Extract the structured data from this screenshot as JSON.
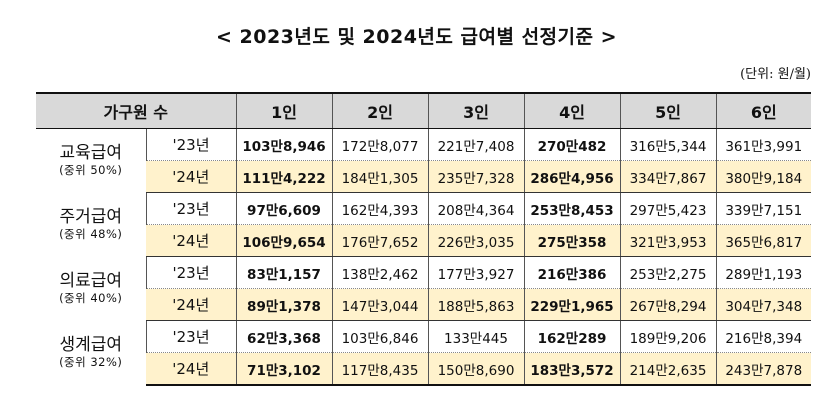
{
  "title": "< 2023년도 및 2024년도 급여별 선정기준 >",
  "unit": "(단위: 원/월)",
  "header": [
    "가구원 수",
    "1인",
    "2인",
    "3인",
    "4인",
    "5인",
    "6인"
  ],
  "rows": [
    {
      "category": "교육급여",
      "sub": "(중위 50%)",
      "y23": {
        "year": "'23년",
        "values": [
          "103만8,946",
          "172만8,077",
          "221만7,408",
          "270만482",
          "316만5,344",
          "361만3,991"
        ]
      },
      "y24": {
        "year": "'24년",
        "values": [
          "111만4,222",
          "184만1,305",
          "235만7,328",
          "286만4,956",
          "334만7,867",
          "380만9,184"
        ]
      }
    },
    {
      "category": "주거급여",
      "sub": "(중위 48%)",
      "y23": {
        "year": "'23년",
        "values": [
          "97만6,609",
          "162만4,393",
          "208만4,364",
          "253만8,453",
          "297만5,423",
          "339만7,151"
        ]
      },
      "y24": {
        "year": "'24년",
        "values": [
          "106만9,654",
          "176만7,652",
          "226만3,035",
          "275만358",
          "321만3,953",
          "365만6,817"
        ]
      }
    },
    {
      "category": "의료급여",
      "sub": "(중위 40%)",
      "y23": {
        "year": "'23년",
        "values": [
          "83만1,157",
          "138만2,462",
          "177만3,927",
          "216만386",
          "253만2,275",
          "289만1,193"
        ]
      },
      "y24": {
        "year": "'24년",
        "values": [
          "89만1,378",
          "147만3,044",
          "188만5,863",
          "229만1,965",
          "267만8,294",
          "304만7,348"
        ]
      }
    },
    {
      "category": "생계급여",
      "sub": "(중위 32%)",
      "y23": {
        "year": "'23년",
        "values": [
          "62만3,368",
          "103만6,846",
          "133만445",
          "162만289",
          "189만9,206",
          "216만8,394"
        ]
      },
      "y24": {
        "year": "'24년",
        "values": [
          "71만3,102",
          "117만8,435",
          "150만8,690",
          "183만3,572",
          "214만2,635",
          "243만7,878"
        ]
      }
    }
  ]
}
